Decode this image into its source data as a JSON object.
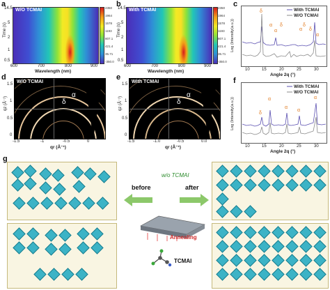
{
  "panels": {
    "a": {
      "letter": "a",
      "label": "W/O TCMAI",
      "ylabel": "Time (s)",
      "xlabel": "Wavelength (nm)",
      "yticks": [
        "14.5",
        "5",
        "2",
        "1",
        "0.5"
      ],
      "xticks": [
        "600",
        "700",
        "800",
        "900"
      ],
      "cbar": [
        "2350",
        "1964",
        "1578",
        "1193",
        "807.1",
        "421.4",
        "35.71",
        "-350.0"
      ]
    },
    "b": {
      "letter": "b",
      "label": "With TCMAI",
      "ylabel": "Time (s)",
      "xlabel": "Wavelength (nm)",
      "yticks": [
        "14.5",
        "5",
        "2",
        "1",
        "0.5"
      ],
      "xticks": [
        "600",
        "700",
        "800",
        "900"
      ],
      "cbar": [
        "2350",
        "1964",
        "1578",
        "1193",
        "807.1",
        "421.4",
        "35.71",
        "-350.0"
      ]
    },
    "c": {
      "letter": "c",
      "ylabel": "Log (Intensity(a.u.))",
      "xlabel": "Angle 2q (°)",
      "legend": [
        "With TCMAI",
        "W/O TCMAI"
      ],
      "xticks": [
        "10",
        "15",
        "20",
        "25",
        "30"
      ],
      "peaks": [
        "δ",
        "α",
        "α",
        "δ",
        "α",
        "δ",
        "δ",
        "α"
      ]
    },
    "d": {
      "letter": "d",
      "label": "W/O TCMAI",
      "ylabel": "qz (Å⁻¹)",
      "xlabel": "qr (Å⁻¹)",
      "alpha": "α",
      "delta": "δ",
      "xticks": [
        "-1.5",
        "-1",
        "-0.5",
        "0"
      ],
      "yticks": [
        "1.5",
        "1",
        "0.5",
        "0"
      ]
    },
    "e": {
      "letter": "e",
      "label": "With TCMAI",
      "ylabel": "qz (Å⁻¹)",
      "xlabel": "qr (Å⁻¹)",
      "alpha": "α",
      "delta": "δ",
      "xticks": [
        "-1.5",
        "-1.0",
        "-0.5",
        "0.0"
      ],
      "yticks": [
        "1.5",
        "1",
        "0.5",
        "0"
      ]
    },
    "f": {
      "letter": "f",
      "ylabel": "Log (Intensity(a.u.))",
      "xlabel": "Angle 2q (°)",
      "legend": [
        "With TCMAI",
        "W/O TCMAI"
      ],
      "xticks": [
        "10",
        "15",
        "20",
        "25",
        "30"
      ],
      "peaks": [
        "δ",
        "α",
        "α",
        "α",
        "α"
      ]
    },
    "g": {
      "letter": "g",
      "wo": "w/o TCMAI",
      "before": "before",
      "after": "after",
      "annealing": "Annealing",
      "tcmai": "TCMAI"
    }
  },
  "colors": {
    "with": "#5a4fb0",
    "wo": "#9a9a9a",
    "peak_label": "#e07a1f",
    "arrow": "#8cc86a",
    "octahedron": "#3cb3c6"
  }
}
